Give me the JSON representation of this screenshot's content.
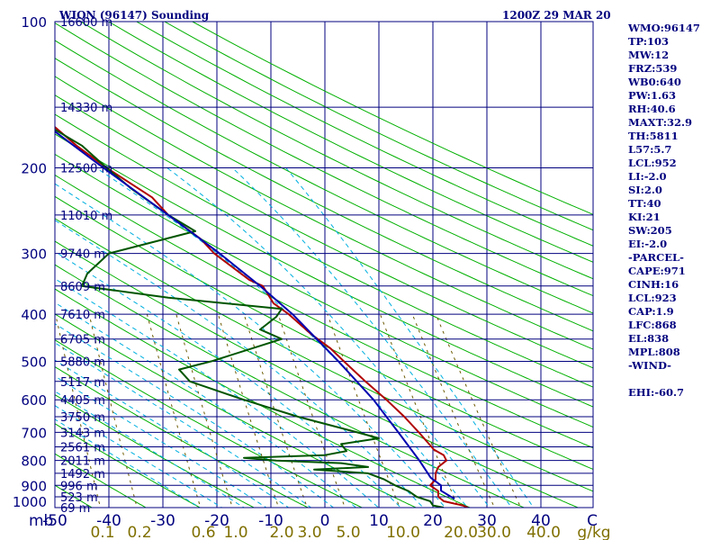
{
  "header": {
    "station": "WIQN (96147) Sounding",
    "time": "1200Z 29 MAR 20"
  },
  "stats": [
    "WMO:96147",
    "TP:103",
    "MW:12",
    "FRZ:539",
    "WB0:640",
    "PW:1.63",
    "RH:40.6",
    "MAXT:32.9",
    "TH:5811",
    "L57:5.7",
    "LCL:952",
    "LI:-2.0",
    "SI:2.0",
    "TT:40",
    "KI:21",
    "SW:205",
    "EI:-2.0",
    "-PARCEL-",
    "CAPE:971",
    "CINH:16",
    "LCL:923",
    "CAP:1.9",
    "LFC:868",
    "EL:838",
    "MPL:808",
    "-WIND-",
    "",
    "EHI:-60.7"
  ],
  "colors": {
    "isobar": "#00007f",
    "isotherm": "#00007f",
    "dry_adiabat": "#00b000",
    "moist_adiabat": "#00b0e0",
    "mixing_ratio": "#6b5a00",
    "temperature": "#b00000",
    "dewpoint": "#005500",
    "parcel": "#0000b0"
  },
  "chart_data": {
    "type": "line",
    "title": "WIQN (96147) Sounding",
    "subtitle": "1200Z 29 MAR 20",
    "x_axis": {
      "quantity": "Temperature (C)",
      "range": [
        -50,
        50
      ],
      "ticks": [
        -50,
        -40,
        -30,
        -20,
        -10,
        0,
        10,
        20,
        30,
        40,
        50
      ],
      "tick_labels": [
        "-50",
        "-40",
        "-30",
        "-20",
        "-10",
        "0",
        "10",
        "20",
        "30",
        "40",
        "C"
      ]
    },
    "y_axis": {
      "label": "mb",
      "scale": "log",
      "range": [
        1000,
        100
      ],
      "ticks": [
        100,
        200,
        300,
        400,
        500,
        600,
        700,
        800,
        900,
        1000
      ],
      "tick_labels": [
        "100",
        "200",
        "300",
        "400",
        "500",
        "600",
        "700",
        "800",
        "900",
        "1000"
      ]
    },
    "mixing_ratio_labels": {
      "values": [
        "0.1",
        "0.2",
        "0.6",
        "1.0",
        "2.0",
        "3.0",
        "5.0",
        "10.0",
        "20.0",
        "30.0",
        "40.0"
      ],
      "unit": "g/kg"
    },
    "heights": [
      {
        "p": 100,
        "label": "16600 m"
      },
      {
        "p": 150,
        "label": "14330 m"
      },
      {
        "p": 200,
        "label": "12500 m"
      },
      {
        "p": 250,
        "label": "11010 m"
      },
      {
        "p": 300,
        "label": "9740 m"
      },
      {
        "p": 350,
        "label": "8609 m"
      },
      {
        "p": 400,
        "label": "7610 m"
      },
      {
        "p": 450,
        "label": "6705 m"
      },
      {
        "p": 500,
        "label": "5880 m"
      },
      {
        "p": 550,
        "label": "5117 m"
      },
      {
        "p": 600,
        "label": "4405 m"
      },
      {
        "p": 650,
        "label": "3750 m"
      },
      {
        "p": 700,
        "label": "3143 m"
      },
      {
        "p": 750,
        "label": "2561 m"
      },
      {
        "p": 800,
        "label": "2011 m"
      },
      {
        "p": 850,
        "label": "1492 m"
      },
      {
        "p": 900,
        "label": "996 m"
      },
      {
        "p": 950,
        "label": "523 m"
      },
      {
        "p": 1000,
        "label": "69 m"
      }
    ],
    "grid": true,
    "series": [
      {
        "key": "temperature",
        "points": [
          [
            1000,
            26.5
          ],
          [
            990,
            25.5
          ],
          [
            970,
            22
          ],
          [
            950,
            21
          ],
          [
            925,
            21
          ],
          [
            900,
            19.5
          ],
          [
            875,
            20.5
          ],
          [
            850,
            20.5
          ],
          [
            825,
            21
          ],
          [
            800,
            22.5
          ],
          [
            780,
            22
          ],
          [
            760,
            20.2
          ],
          [
            700,
            17.4
          ],
          [
            650,
            14.7
          ],
          [
            600,
            11.4
          ],
          [
            550,
            7.5
          ],
          [
            500,
            3.5
          ],
          [
            470,
            1
          ],
          [
            440,
            -2.5
          ],
          [
            400,
            -6.7
          ],
          [
            380,
            -9.5
          ],
          [
            350,
            -11.5
          ],
          [
            340,
            -14
          ],
          [
            300,
            -20.5
          ],
          [
            280,
            -23
          ],
          [
            250,
            -29
          ],
          [
            230,
            -32
          ],
          [
            200,
            -40.4
          ],
          [
            180,
            -46
          ],
          [
            150,
            -54.3
          ],
          [
            130,
            -60
          ],
          [
            110,
            -65.5
          ],
          [
            103,
            -67
          ],
          [
            100,
            -69.5
          ]
        ]
      },
      {
        "key": "dewpoint",
        "points": [
          [
            1000,
            22
          ],
          [
            990,
            20
          ],
          [
            970,
            19.5
          ],
          [
            950,
            17
          ],
          [
            925,
            15.5
          ],
          [
            900,
            13
          ],
          [
            875,
            11
          ],
          [
            850,
            8
          ],
          [
            835,
            -2
          ],
          [
            825,
            8
          ],
          [
            810,
            3
          ],
          [
            800,
            -9
          ],
          [
            790,
            -15
          ],
          [
            780,
            0
          ],
          [
            765,
            4
          ],
          [
            740,
            3
          ],
          [
            720,
            10
          ],
          [
            700,
            6
          ],
          [
            650,
            -5
          ],
          [
            600,
            -15
          ],
          [
            550,
            -25
          ],
          [
            520,
            -27
          ],
          [
            500,
            -21
          ],
          [
            450,
            -8
          ],
          [
            430,
            -12
          ],
          [
            405,
            -9
          ],
          [
            390,
            -8
          ],
          [
            370,
            -29
          ],
          [
            350,
            -45
          ],
          [
            330,
            -44
          ],
          [
            300,
            -40
          ],
          [
            270,
            -24
          ],
          [
            250,
            -29
          ],
          [
            220,
            -36
          ],
          [
            200,
            -40.4
          ],
          [
            180,
            -45
          ],
          [
            150,
            -57
          ],
          [
            130,
            -64
          ],
          [
            110,
            -72.5
          ],
          [
            100,
            -76.5
          ]
        ]
      },
      {
        "key": "parcel",
        "points": [
          [
            960,
            24
          ],
          [
            923,
            21.5
          ],
          [
            900,
            21.5
          ],
          [
            868,
            19.6
          ],
          [
            800,
            17.5
          ],
          [
            700,
            13.6
          ],
          [
            600,
            9
          ],
          [
            500,
            2.5
          ],
          [
            400,
            -6
          ],
          [
            350,
            -12
          ],
          [
            300,
            -19.5
          ],
          [
            250,
            -29
          ],
          [
            200,
            -41
          ],
          [
            150,
            -56
          ],
          [
            120,
            -66
          ],
          [
            107,
            -72
          ]
        ]
      }
    ]
  }
}
